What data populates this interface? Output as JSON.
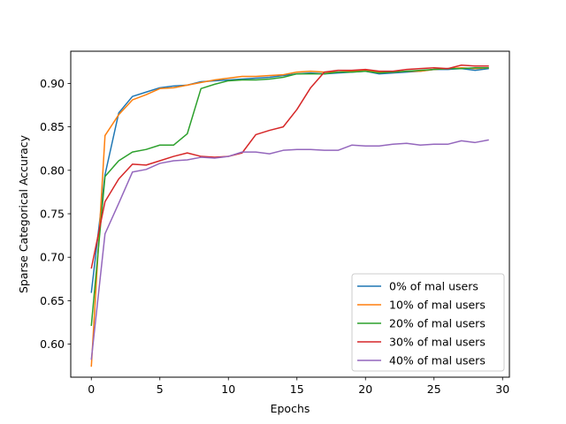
{
  "chart_data": {
    "type": "line",
    "title": "",
    "xlabel": "Epochs",
    "ylabel": "Sparse Categorical Accuracy",
    "xlim": [
      -1.5,
      30.5
    ],
    "ylim": [
      0.562,
      0.937
    ],
    "xticks": [
      0,
      5,
      10,
      15,
      20,
      25,
      30
    ],
    "yticks": [
      0.6,
      0.65,
      0.7,
      0.75,
      0.8,
      0.85,
      0.9
    ],
    "ytick_labels": [
      "0.60",
      "0.65",
      "0.70",
      "0.75",
      "0.80",
      "0.85",
      "0.90"
    ],
    "grid": false,
    "legend_position": "lower right",
    "x": [
      0,
      1,
      2,
      3,
      4,
      5,
      6,
      7,
      8,
      9,
      10,
      11,
      12,
      13,
      14,
      15,
      16,
      17,
      18,
      19,
      20,
      21,
      22,
      23,
      24,
      25,
      26,
      27,
      28,
      29
    ],
    "series": [
      {
        "name": "0% of mal users",
        "color": "#1f77b4",
        "values": [
          0.659,
          0.795,
          0.866,
          0.885,
          0.89,
          0.895,
          0.897,
          0.898,
          0.902,
          0.903,
          0.904,
          0.905,
          0.906,
          0.907,
          0.909,
          0.911,
          0.912,
          0.911,
          0.912,
          0.913,
          0.914,
          0.911,
          0.912,
          0.913,
          0.914,
          0.916,
          0.916,
          0.917,
          0.915,
          0.917
        ]
      },
      {
        "name": "10% of mal users",
        "color": "#ff7f0e",
        "values": [
          0.574,
          0.84,
          0.864,
          0.881,
          0.887,
          0.894,
          0.895,
          0.898,
          0.901,
          0.904,
          0.906,
          0.908,
          0.908,
          0.909,
          0.91,
          0.913,
          0.914,
          0.913,
          0.913,
          0.914,
          0.915,
          0.913,
          0.913,
          0.914,
          0.914,
          0.916,
          0.917,
          0.918,
          0.917,
          0.918
        ]
      },
      {
        "name": "20% of mal users",
        "color": "#2ca02c",
        "values": [
          0.621,
          0.793,
          0.811,
          0.821,
          0.824,
          0.829,
          0.829,
          0.842,
          0.894,
          0.899,
          0.903,
          0.904,
          0.904,
          0.905,
          0.907,
          0.911,
          0.911,
          0.911,
          0.913,
          0.913,
          0.914,
          0.912,
          0.913,
          0.914,
          0.915,
          0.916,
          0.917,
          0.917,
          0.918,
          0.918
        ]
      },
      {
        "name": "30% of mal users",
        "color": "#d62728",
        "values": [
          0.687,
          0.764,
          0.79,
          0.807,
          0.806,
          0.811,
          0.816,
          0.82,
          0.816,
          0.815,
          0.816,
          0.82,
          0.841,
          0.846,
          0.85,
          0.87,
          0.895,
          0.913,
          0.915,
          0.915,
          0.916,
          0.914,
          0.914,
          0.916,
          0.917,
          0.918,
          0.917,
          0.921,
          0.92,
          0.92
        ]
      },
      {
        "name": "40% of mal users",
        "color": "#9467bd",
        "values": [
          0.582,
          0.727,
          0.762,
          0.798,
          0.801,
          0.808,
          0.811,
          0.812,
          0.815,
          0.814,
          0.816,
          0.821,
          0.821,
          0.819,
          0.823,
          0.824,
          0.824,
          0.823,
          0.823,
          0.829,
          0.828,
          0.828,
          0.83,
          0.831,
          0.829,
          0.83,
          0.83,
          0.834,
          0.832,
          0.835
        ]
      }
    ]
  }
}
